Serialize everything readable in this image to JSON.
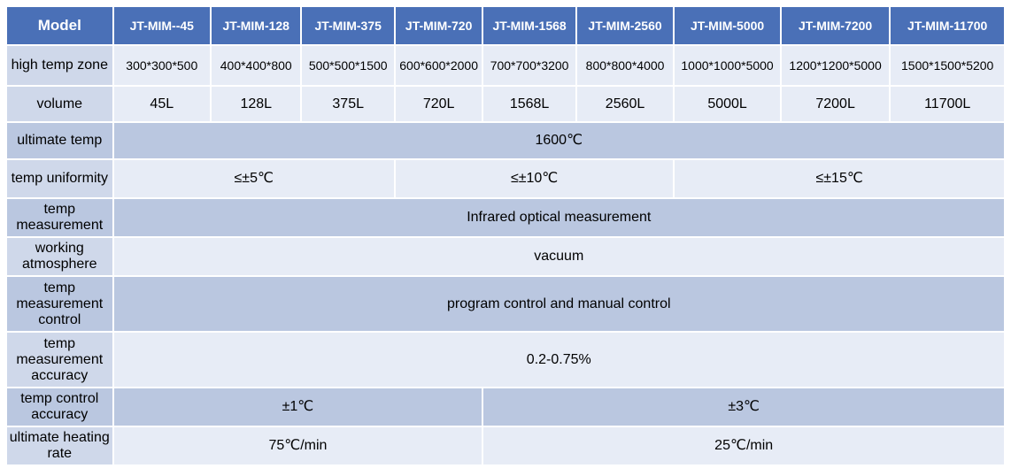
{
  "header": {
    "model": "Model",
    "models": [
      "JT-MIM--45",
      "JT-MIM-128",
      "JT-MIM-375",
      "JT-MIM-720",
      "JT-MIM-1568",
      "JT-MIM-2560",
      "JT-MIM-5000",
      "JT-MIM-7200",
      "JT-MIM-11700"
    ]
  },
  "rows": {
    "zone": {
      "label": "high temp zone",
      "values": [
        "300*300*500",
        "400*400*800",
        "500*500*1500",
        "600*600*2000",
        "700*700*3200",
        "800*800*4000",
        "1000*1000*5000",
        "1200*1200*5000",
        "1500*1500*5200"
      ]
    },
    "volume": {
      "label": "volume",
      "values": [
        "45L",
        "128L",
        "375L",
        "720L",
        "1568L",
        "2560L",
        "5000L",
        "7200L",
        "11700L"
      ]
    },
    "ultimate_temp": {
      "label": "ultimate temp",
      "value": "1600℃"
    },
    "uniformity": {
      "label": "temp uniformity",
      "values": [
        "≤±5℃",
        "≤±10℃",
        "≤±15℃"
      ]
    },
    "measurement": {
      "label": "temp measurement",
      "value": "Infrared optical measurement"
    },
    "atmosphere": {
      "label": "working atmosphere",
      "value": "vacuum"
    },
    "measurement_control": {
      "label": "temp measurement control",
      "value": "program control and manual control"
    },
    "measurement_accuracy": {
      "label": "temp measurement accuracy",
      "value": "0.2-0.75%"
    },
    "control_accuracy": {
      "label": "temp control accuracy",
      "values": [
        "±1℃",
        "±3℃"
      ]
    },
    "heating_rate": {
      "label": "ultimate heating rate",
      "values": [
        "75℃/min",
        "25℃/min"
      ]
    }
  },
  "colors": {
    "header_bg": "#4a70b7",
    "header_text": "#ffffff",
    "row_light": "#e7ecf6",
    "row_dark": "#bac7e0",
    "label_bg": "#cfd8ea"
  }
}
